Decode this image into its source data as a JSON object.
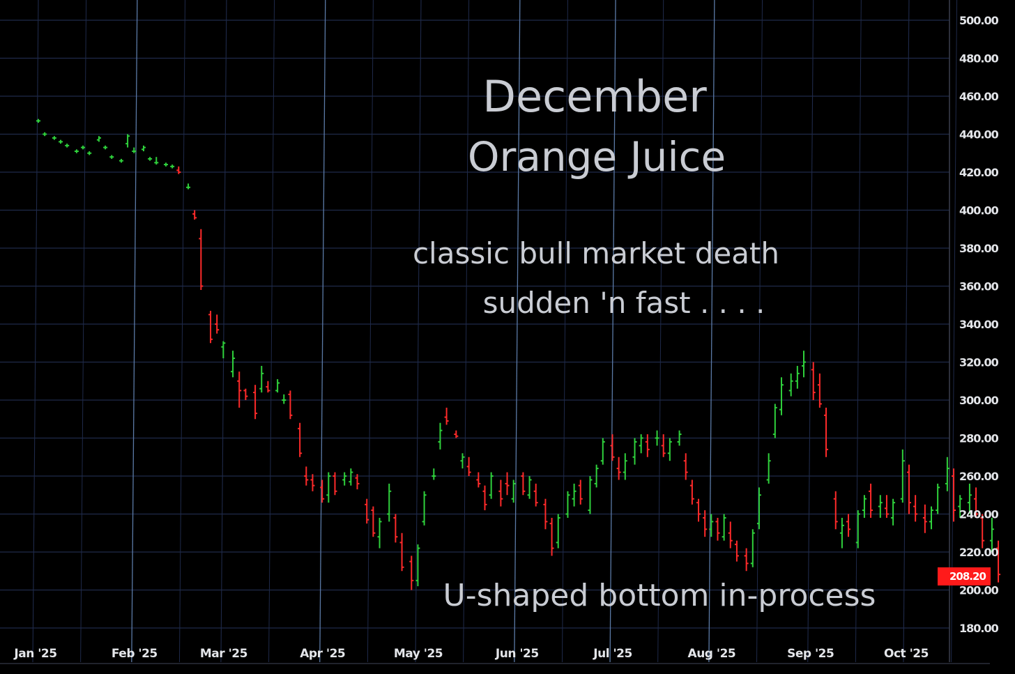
{
  "colors": {
    "background": "#000000",
    "grid": "#1f2a4a",
    "grid_major": "#5b7aa6",
    "up": "#2fd13c",
    "down": "#ff2a2a",
    "text": "#c9ccd3",
    "price_box": "#ff1a1a"
  },
  "annotations": {
    "title_line1": "December",
    "title_line2": "Orange Juice",
    "note_line1": "classic bull market death",
    "note_line2": "sudden 'n fast . . . .",
    "bottom_note": "U-shaped bottom in-process"
  },
  "chart_data": {
    "type": "ohlc",
    "title": "December Orange Juice",
    "xlabel": "",
    "ylabel": "",
    "ylim": [
      180,
      500
    ],
    "yticks": [
      {
        "value": 500,
        "label": "500.00"
      },
      {
        "value": 480,
        "label": "480.00"
      },
      {
        "value": 460,
        "label": "460.00"
      },
      {
        "value": 440,
        "label": "440.00"
      },
      {
        "value": 420,
        "label": "420.00"
      },
      {
        "value": 400,
        "label": "400.00"
      },
      {
        "value": 380,
        "label": "380.00"
      },
      {
        "value": 360,
        "label": "360.00"
      },
      {
        "value": 340,
        "label": "340.00"
      },
      {
        "value": 320,
        "label": "320.00"
      },
      {
        "value": 300,
        "label": "300.00"
      },
      {
        "value": 280,
        "label": "280.00"
      },
      {
        "value": 260,
        "label": "260.00"
      },
      {
        "value": 240,
        "label": "240.00"
      },
      {
        "value": 220,
        "label": "220.00"
      },
      {
        "value": 200,
        "label": "200.00"
      },
      {
        "value": 180,
        "label": "180.00"
      }
    ],
    "xticks": [
      "Jan '25",
      "Feb '25",
      "Mar '25",
      "Apr '25",
      "May '25",
      "Jun '25",
      "Jul '25",
      "Aug '25",
      "Sep '25",
      "Oct '25"
    ],
    "last_price": "208.20",
    "grid": true,
    "bars": [
      [
        "2025-01-01",
        447,
        448,
        446,
        447
      ],
      [
        "2025-01-03",
        440,
        441,
        439,
        440
      ],
      [
        "2025-01-06",
        438,
        439,
        437,
        438
      ],
      [
        "2025-01-08",
        436,
        437,
        435,
        436
      ],
      [
        "2025-01-10",
        434,
        435,
        433,
        434
      ],
      [
        "2025-01-13",
        431,
        432,
        430,
        431
      ],
      [
        "2025-01-15",
        433,
        434,
        432,
        433
      ],
      [
        "2025-01-17",
        430,
        431,
        429,
        430
      ],
      [
        "2025-01-20",
        437,
        439,
        436,
        438
      ],
      [
        "2025-01-22",
        433,
        434,
        432,
        433
      ],
      [
        "2025-01-24",
        428,
        429,
        427,
        428
      ],
      [
        "2025-01-27",
        426,
        427,
        425,
        426
      ],
      [
        "2025-01-29",
        435,
        440,
        433,
        439
      ],
      [
        "2025-01-31",
        431,
        433,
        430,
        431
      ],
      [
        "2025-02-03",
        432,
        434,
        431,
        433
      ],
      [
        "2025-02-05",
        427,
        428,
        426,
        427
      ],
      [
        "2025-02-07",
        425,
        428,
        424,
        425
      ],
      [
        "2025-02-10",
        424,
        425,
        423,
        424
      ],
      [
        "2025-02-12",
        423,
        424,
        422,
        423
      ],
      [
        "2025-02-14",
        421,
        423,
        419,
        420
      ],
      [
        "2025-02-17",
        412,
        414,
        411,
        412
      ],
      [
        "2025-02-19",
        398,
        400,
        395,
        396
      ],
      [
        "2025-02-21",
        385,
        390,
        358,
        360
      ],
      [
        "2025-02-24",
        345,
        347,
        330,
        332
      ],
      [
        "2025-02-26",
        340,
        345,
        335,
        337
      ],
      [
        "2025-02-28",
        328,
        331,
        322,
        330
      ],
      [
        "2025-03-03",
        315,
        326,
        312,
        322
      ],
      [
        "2025-03-05",
        310,
        315,
        296,
        305
      ],
      [
        "2025-03-07",
        305,
        306,
        300,
        302
      ],
      [
        "2025-03-10",
        304,
        308,
        290,
        293
      ],
      [
        "2025-03-12",
        306,
        318,
        304,
        314
      ],
      [
        "2025-03-14",
        307,
        310,
        304,
        305
      ],
      [
        "2025-03-17",
        305,
        311,
        304,
        309
      ],
      [
        "2025-03-19",
        300,
        303,
        298,
        300
      ],
      [
        "2025-03-21",
        303,
        305,
        290,
        292
      ],
      [
        "2025-03-24",
        285,
        288,
        270,
        272
      ],
      [
        "2025-03-26",
        260,
        265,
        255,
        258
      ],
      [
        "2025-03-28",
        258,
        261,
        252,
        255
      ],
      [
        "2025-03-31",
        254,
        258,
        246,
        248
      ],
      [
        "2025-04-02",
        250,
        262,
        246,
        260
      ],
      [
        "2025-04-04",
        260,
        262,
        250,
        252
      ],
      [
        "2025-04-07",
        258,
        262,
        255,
        260
      ],
      [
        "2025-04-09",
        257,
        264,
        255,
        262
      ],
      [
        "2025-04-11",
        259,
        261,
        253,
        256
      ],
      [
        "2025-04-14",
        245,
        248,
        235,
        237
      ],
      [
        "2025-04-16",
        242,
        244,
        228,
        230
      ],
      [
        "2025-04-18",
        228,
        238,
        222,
        236
      ],
      [
        "2025-04-21",
        240,
        256,
        236,
        252
      ],
      [
        "2025-04-23",
        238,
        240,
        225,
        228
      ],
      [
        "2025-04-25",
        225,
        230,
        210,
        212
      ],
      [
        "2025-04-28",
        215,
        218,
        200,
        205
      ],
      [
        "2025-04-30",
        205,
        224,
        202,
        222
      ],
      [
        "2025-05-02",
        236,
        252,
        234,
        250
      ],
      [
        "2025-05-05",
        260,
        264,
        258,
        260
      ],
      [
        "2025-05-07",
        278,
        288,
        274,
        284
      ],
      [
        "2025-05-09",
        291,
        296,
        287,
        289
      ],
      [
        "2025-05-12",
        282,
        284,
        280,
        281
      ],
      [
        "2025-05-14",
        268,
        272,
        264,
        270
      ],
      [
        "2025-05-16",
        265,
        270,
        260,
        262
      ],
      [
        "2025-05-19",
        258,
        262,
        254,
        256
      ],
      [
        "2025-05-21",
        252,
        255,
        242,
        245
      ],
      [
        "2025-05-23",
        250,
        262,
        248,
        260
      ],
      [
        "2025-05-26",
        252,
        258,
        244,
        248
      ],
      [
        "2025-05-28",
        256,
        262,
        250,
        255
      ],
      [
        "2025-05-30",
        248,
        258,
        246,
        256
      ],
      [
        "2025-06-02",
        260,
        262,
        250,
        252
      ],
      [
        "2025-06-04",
        250,
        260,
        248,
        258
      ],
      [
        "2025-06-06",
        252,
        256,
        244,
        246
      ],
      [
        "2025-06-09",
        245,
        248,
        232,
        236
      ],
      [
        "2025-06-11",
        235,
        238,
        218,
        222
      ],
      [
        "2025-06-13",
        225,
        240,
        222,
        238
      ],
      [
        "2025-06-16",
        240,
        252,
        238,
        250
      ],
      [
        "2025-06-18",
        248,
        256,
        244,
        252
      ],
      [
        "2025-06-20",
        255,
        258,
        245,
        248
      ],
      [
        "2025-06-23",
        242,
        260,
        240,
        258
      ],
      [
        "2025-06-25",
        256,
        266,
        254,
        264
      ],
      [
        "2025-06-27",
        268,
        280,
        266,
        278
      ],
      [
        "2025-06-30",
        276,
        282,
        268,
        270
      ],
      [
        "2025-07-02",
        264,
        270,
        258,
        262
      ],
      [
        "2025-07-04",
        262,
        272,
        258,
        268
      ],
      [
        "2025-07-07",
        270,
        280,
        266,
        278
      ],
      [
        "2025-07-09",
        276,
        282,
        272,
        280
      ],
      [
        "2025-07-11",
        278,
        282,
        270,
        274
      ],
      [
        "2025-07-14",
        280,
        284,
        276,
        280
      ],
      [
        "2025-07-16",
        276,
        282,
        270,
        272
      ],
      [
        "2025-07-18",
        272,
        280,
        268,
        278
      ],
      [
        "2025-07-21",
        278,
        284,
        276,
        282
      ],
      [
        "2025-07-23",
        268,
        272,
        258,
        262
      ],
      [
        "2025-07-25",
        255,
        258,
        245,
        248
      ],
      [
        "2025-07-27",
        246,
        248,
        236,
        240
      ],
      [
        "2025-07-29",
        238,
        242,
        228,
        232
      ],
      [
        "2025-07-31",
        232,
        240,
        228,
        236
      ],
      [
        "2025-08-02",
        236,
        238,
        226,
        230
      ],
      [
        "2025-08-04",
        228,
        240,
        226,
        238
      ],
      [
        "2025-08-06",
        230,
        236,
        222,
        226
      ],
      [
        "2025-08-08",
        224,
        226,
        215,
        218
      ],
      [
        "2025-08-11",
        218,
        222,
        210,
        214
      ],
      [
        "2025-08-13",
        214,
        232,
        212,
        230
      ],
      [
        "2025-08-15",
        235,
        254,
        232,
        250
      ],
      [
        "2025-08-18",
        258,
        272,
        256,
        268
      ],
      [
        "2025-08-20",
        282,
        298,
        280,
        296
      ],
      [
        "2025-08-22",
        295,
        312,
        292,
        308
      ],
      [
        "2025-08-25",
        305,
        314,
        302,
        310
      ],
      [
        "2025-08-27",
        310,
        318,
        306,
        314
      ],
      [
        "2025-08-29",
        318,
        326,
        312,
        320
      ],
      [
        "2025-09-01",
        316,
        320,
        300,
        304
      ],
      [
        "2025-09-03",
        308,
        314,
        296,
        298
      ],
      [
        "2025-09-05",
        292,
        296,
        270,
        274
      ],
      [
        "2025-09-08",
        248,
        252,
        232,
        236
      ],
      [
        "2025-09-10",
        230,
        238,
        222,
        234
      ],
      [
        "2025-09-12",
        236,
        240,
        228,
        232
      ],
      [
        "2025-09-15",
        225,
        242,
        222,
        240
      ],
      [
        "2025-09-17",
        242,
        250,
        238,
        248
      ],
      [
        "2025-09-19",
        252,
        256,
        238,
        242
      ],
      [
        "2025-09-22",
        244,
        250,
        238,
        246
      ],
      [
        "2025-09-24",
        243,
        250,
        238,
        240
      ],
      [
        "2025-09-26",
        238,
        248,
        234,
        246
      ],
      [
        "2025-09-29",
        248,
        274,
        246,
        268
      ],
      [
        "2025-10-01",
        262,
        266,
        240,
        246
      ],
      [
        "2025-10-03",
        244,
        250,
        236,
        240
      ],
      [
        "2025-10-06",
        238,
        245,
        230,
        236
      ],
      [
        "2025-10-08",
        236,
        244,
        232,
        242
      ],
      [
        "2025-10-10",
        242,
        256,
        240,
        254
      ],
      [
        "2025-10-13",
        256,
        270,
        252,
        264
      ],
      [
        "2025-10-15",
        260,
        264,
        236,
        242
      ],
      [
        "2025-10-17",
        244,
        250,
        238,
        248
      ],
      [
        "2025-10-20",
        246,
        256,
        240,
        250
      ],
      [
        "2025-10-22",
        248,
        254,
        238,
        240
      ],
      [
        "2025-10-24",
        238,
        240,
        222,
        226
      ],
      [
        "2025-10-27",
        226,
        238,
        220,
        232
      ],
      [
        "2025-10-29",
        222,
        226,
        204,
        208.2
      ]
    ]
  }
}
